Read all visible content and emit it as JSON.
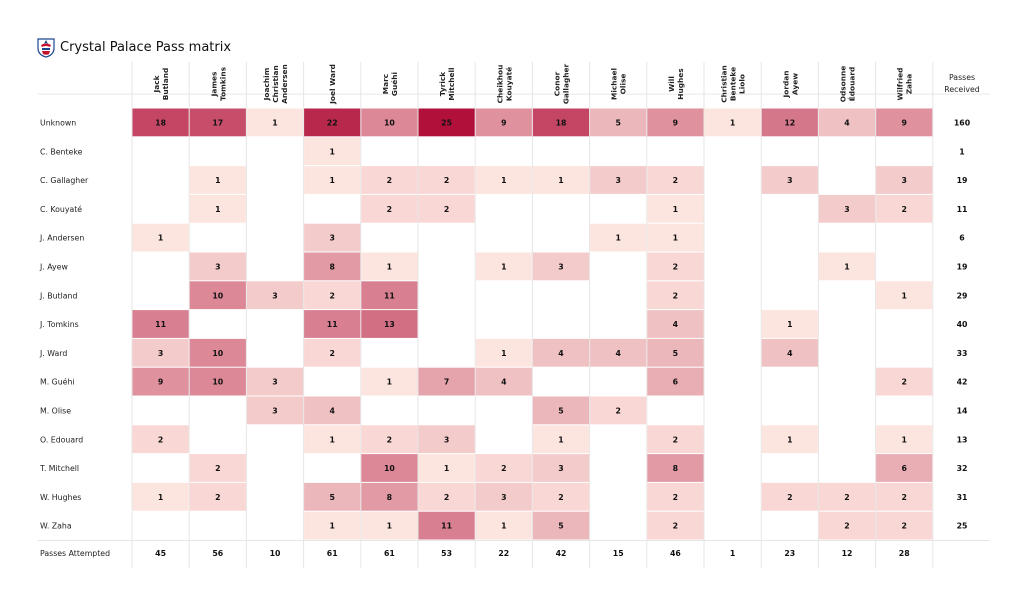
{
  "title": "Crystal Palace Pass matrix",
  "logo": {
    "name": "crest",
    "colors": [
      "#1b458f",
      "#c4122e"
    ]
  },
  "chart_data": {
    "type": "heatmap",
    "title": "Crystal Palace Pass matrix",
    "columns": [
      [
        "Jack",
        "Butland"
      ],
      [
        "James",
        "Tomkins"
      ],
      [
        "Joachim",
        "Christian",
        "Andersen"
      ],
      [
        "Joel Ward"
      ],
      [
        "Marc",
        "Guéhi"
      ],
      [
        "Tyrick",
        "Mitchell"
      ],
      [
        "Cheikhou",
        "Kouyaté"
      ],
      [
        "Conor",
        "Gallagher"
      ],
      [
        "Michael",
        "Olise"
      ],
      [
        "Will",
        "Hughes"
      ],
      [
        "Christian",
        "Benteke",
        "Liolo"
      ],
      [
        "Jordan",
        "Ayew"
      ],
      [
        "Odsonne",
        "Édouard"
      ],
      [
        "Wilfried",
        "Zaha"
      ]
    ],
    "rows": [
      "Unknown",
      "C. Benteke",
      "C. Gallagher",
      "C. Kouyaté",
      "J. Andersen",
      "J. Ayew",
      "J. Butland",
      "J. Tomkins",
      "J. Ward",
      "M. Guéhi",
      "M. Olise",
      "O. Edouard",
      "T. Mitchell",
      "W. Hughes",
      "W. Zaha"
    ],
    "values": [
      [
        18,
        17,
        1,
        22,
        10,
        25,
        9,
        18,
        5,
        9,
        1,
        12,
        4,
        9
      ],
      [
        null,
        null,
        null,
        1,
        null,
        null,
        null,
        null,
        null,
        null,
        null,
        null,
        null,
        null
      ],
      [
        null,
        1,
        null,
        1,
        2,
        2,
        1,
        1,
        3,
        2,
        null,
        3,
        null,
        3
      ],
      [
        null,
        1,
        null,
        null,
        2,
        2,
        null,
        null,
        null,
        1,
        null,
        null,
        3,
        2
      ],
      [
        1,
        null,
        null,
        3,
        null,
        null,
        null,
        null,
        1,
        1,
        null,
        null,
        null,
        null
      ],
      [
        null,
        3,
        null,
        8,
        1,
        null,
        1,
        3,
        null,
        2,
        null,
        null,
        1,
        null
      ],
      [
        null,
        10,
        3,
        2,
        11,
        null,
        null,
        null,
        null,
        2,
        null,
        null,
        null,
        1
      ],
      [
        11,
        null,
        null,
        11,
        13,
        null,
        null,
        null,
        null,
        4,
        null,
        1,
        null,
        null
      ],
      [
        3,
        10,
        null,
        2,
        null,
        null,
        1,
        4,
        4,
        5,
        null,
        4,
        null,
        null
      ],
      [
        9,
        10,
        3,
        null,
        1,
        7,
        4,
        null,
        null,
        6,
        null,
        null,
        null,
        2
      ],
      [
        null,
        null,
        3,
        4,
        null,
        null,
        null,
        5,
        2,
        null,
        null,
        null,
        null,
        null
      ],
      [
        2,
        null,
        null,
        1,
        2,
        3,
        null,
        1,
        null,
        2,
        null,
        1,
        null,
        1
      ],
      [
        null,
        2,
        null,
        null,
        10,
        1,
        2,
        3,
        null,
        8,
        null,
        null,
        null,
        6
      ],
      [
        1,
        2,
        null,
        5,
        8,
        2,
        3,
        2,
        null,
        2,
        null,
        2,
        2,
        2
      ],
      [
        null,
        null,
        null,
        1,
        1,
        11,
        1,
        5,
        null,
        2,
        null,
        null,
        2,
        2
      ]
    ],
    "row_totals_header": [
      "Passes",
      "Received"
    ],
    "row_totals": [
      160,
      1,
      19,
      11,
      6,
      19,
      29,
      40,
      33,
      42,
      14,
      13,
      32,
      31,
      25
    ],
    "col_totals_label": "Passes Attempted",
    "col_totals": [
      45,
      56,
      10,
      61,
      61,
      53,
      22,
      42,
      15,
      46,
      1,
      23,
      12,
      28
    ],
    "color_scale": {
      "low": "#fde5df",
      "high": "#b0103a",
      "min": 1,
      "max": 25
    }
  }
}
